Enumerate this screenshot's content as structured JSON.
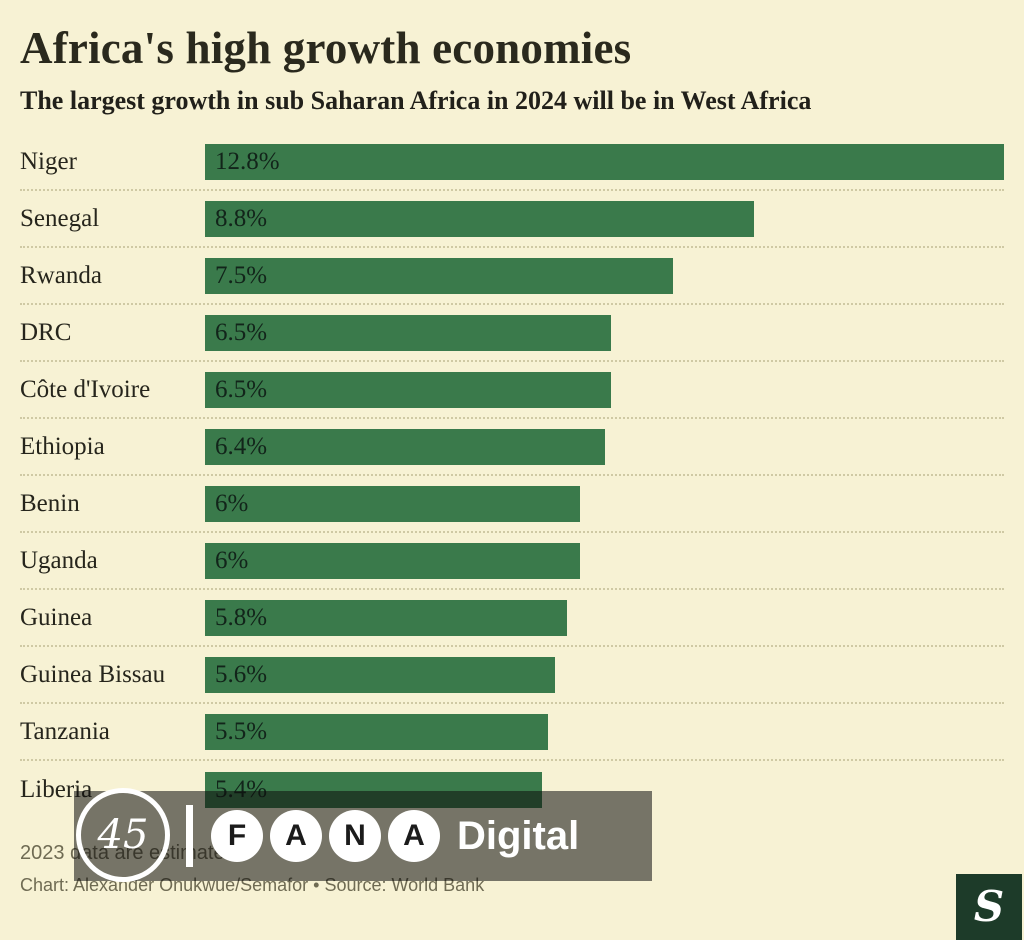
{
  "title": "Africa's high growth economies",
  "subtitle": "The largest growth in sub Saharan Africa in 2024 will be in West Africa",
  "chart_data": {
    "type": "bar",
    "orientation": "horizontal",
    "title": "Africa's high growth economies",
    "subtitle": "The largest growth in sub Saharan Africa in 2024 will be in West Africa",
    "categories": [
      "Niger",
      "Senegal",
      "Rwanda",
      "DRC",
      "Côte d'Ivoire",
      "Ethiopia",
      "Benin",
      "Uganda",
      "Guinea",
      "Guinea Bissau",
      "Tanzania",
      "Liberia"
    ],
    "values": [
      12.8,
      8.8,
      7.5,
      6.5,
      6.5,
      6.4,
      6,
      6,
      5.8,
      5.6,
      5.5,
      5.4
    ],
    "value_labels": [
      "12.8%",
      "8.8%",
      "7.5%",
      "6.5%",
      "6.5%",
      "6.4%",
      "6%",
      "6%",
      "5.8%",
      "5.6%",
      "5.5%",
      "5.4%"
    ],
    "xlabel": "",
    "ylabel": "",
    "xlim": [
      0,
      12.8
    ],
    "grid": false,
    "legend": false,
    "bar_color": "#3a7a4b"
  },
  "footer": {
    "note": "2023 data are estimates.",
    "credit": "Chart: Alexander Onukwue/Semafor • Source: World Bank"
  },
  "watermark": {
    "emblem_text": "45",
    "letters": [
      "F",
      "A",
      "N",
      "A"
    ],
    "brand_suffix": "Digital"
  },
  "publisher_logo": "S",
  "colors": {
    "background": "#f7f2d4",
    "bar": "#3a7a4b",
    "logo_square": "#1d3b29"
  }
}
